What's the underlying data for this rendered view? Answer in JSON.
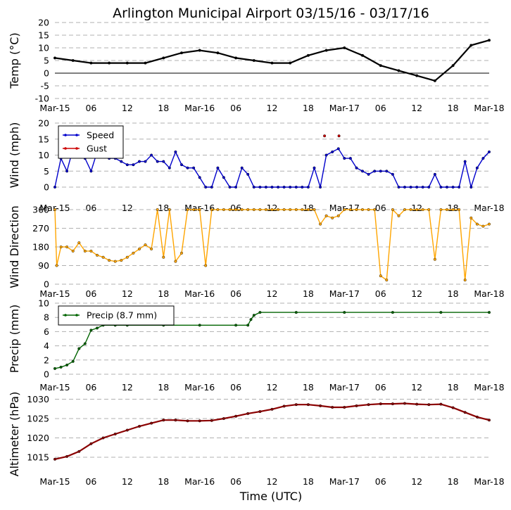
{
  "title": "Arlington Municipal Airport 03/15/16 - 03/17/16",
  "xlabel": "Time (UTC)",
  "x_ticks": [
    "Mar-15",
    "06",
    "12",
    "18",
    "Mar-16",
    "06",
    "12",
    "18",
    "Mar-17",
    "06",
    "12",
    "18",
    "Mar-18"
  ],
  "chart_data": [
    {
      "type": "line",
      "ylabel": "Temp (°C)",
      "ylim": [
        -10,
        20
      ],
      "yticks": [
        -10,
        -5,
        0,
        5,
        10,
        15,
        20
      ],
      "grid": true,
      "zero_line": true,
      "x_hours": [
        0,
        3,
        6,
        9,
        12,
        15,
        18,
        21,
        24,
        27,
        30,
        33,
        36,
        39,
        42,
        45,
        48,
        51,
        54,
        57,
        60,
        63,
        66,
        69,
        72
      ],
      "series": [
        {
          "color": "#000000",
          "values": [
            6,
            5,
            4,
            4,
            4,
            4,
            6,
            8,
            9,
            8,
            6,
            5,
            4,
            4,
            7,
            9,
            10,
            7,
            3,
            1,
            -1,
            -3,
            3,
            11,
            13
          ]
        }
      ]
    },
    {
      "type": "line",
      "ylabel": "Wind (mph)",
      "ylim": [
        0,
        20
      ],
      "yticks": [
        0,
        5,
        10,
        15,
        20
      ],
      "grid": true,
      "legend": "top-left",
      "x_hours": [
        0,
        1,
        2,
        3,
        4,
        5,
        6,
        7,
        8,
        9,
        10,
        11,
        12,
        13,
        14,
        15,
        16,
        17,
        18,
        19,
        20,
        21,
        22,
        23,
        24,
        25,
        26,
        27,
        28,
        29,
        30,
        31,
        32,
        33,
        34,
        35,
        36,
        37,
        38,
        39,
        40,
        41,
        42,
        43,
        44,
        45,
        46,
        47,
        48,
        49,
        50,
        51,
        52,
        53,
        54,
        55,
        56,
        57,
        58,
        59,
        60,
        61,
        62,
        63,
        64,
        65,
        66,
        67,
        68,
        69,
        70,
        71,
        72
      ],
      "series": [
        {
          "name": "Speed",
          "color": "#0000cc",
          "values": [
            0,
            9,
            5,
            12,
            11,
            9,
            5,
            11,
            11,
            9,
            9,
            8,
            7,
            7,
            8,
            8,
            10,
            8,
            8,
            6,
            11,
            7,
            6,
            6,
            3,
            0,
            0,
            6,
            3,
            0,
            0,
            6,
            4,
            0,
            0,
            0,
            0,
            0,
            0,
            0,
            0,
            0,
            0,
            6,
            0,
            10,
            11,
            12,
            9,
            9,
            6,
            5,
            4,
            5,
            5,
            5,
            4,
            0,
            0,
            0,
            0,
            0,
            0,
            4,
            0,
            0,
            0,
            0,
            8,
            0,
            6,
            9,
            11
          ]
        },
        {
          "name": "Gust",
          "color": "#cc0000",
          "points": [
            [
              44.7,
              16
            ],
            [
              47.1,
              16
            ]
          ]
        }
      ]
    },
    {
      "type": "line",
      "ylabel": "Wind Direction",
      "ylim": [
        0,
        360
      ],
      "yticks": [
        0,
        90,
        180,
        270,
        360
      ],
      "grid": true,
      "x_hours": [
        0,
        0.3,
        1,
        2,
        3,
        4,
        5,
        6,
        7,
        8,
        9,
        10,
        11,
        12,
        13,
        14,
        15,
        16,
        17,
        18,
        19,
        20,
        21,
        22,
        23,
        24,
        25,
        26,
        27,
        28,
        29,
        30,
        31,
        32,
        33,
        34,
        35,
        36,
        37,
        38,
        39,
        40,
        41,
        42,
        43,
        44,
        45,
        46,
        47,
        48,
        49,
        50,
        51,
        52,
        53,
        54,
        55,
        56,
        57,
        58,
        59,
        60,
        61,
        62,
        63,
        64,
        65,
        66,
        67,
        68,
        69,
        70,
        71,
        72
      ],
      "series": [
        {
          "color": "#ffa500",
          "values": [
            360,
            90,
            180,
            180,
            160,
            200,
            160,
            160,
            140,
            130,
            115,
            110,
            115,
            130,
            150,
            170,
            190,
            170,
            360,
            130,
            360,
            110,
            150,
            360,
            360,
            360,
            90,
            360,
            360,
            360,
            360,
            360,
            360,
            360,
            360,
            360,
            360,
            360,
            360,
            360,
            360,
            360,
            360,
            360,
            360,
            290,
            330,
            320,
            330,
            360,
            360,
            360,
            360,
            360,
            360,
            40,
            20,
            360,
            330,
            360,
            360,
            360,
            360,
            360,
            120,
            360,
            360,
            360,
            360,
            20,
            320,
            290,
            280,
            290
          ]
        }
      ]
    },
    {
      "type": "line",
      "ylabel": "Precip (mm)",
      "ylim": [
        0,
        10
      ],
      "yticks": [
        0,
        2,
        4,
        6,
        8,
        10
      ],
      "grid": true,
      "legend": "top-left",
      "x_hours": [
        0,
        1,
        2,
        3,
        4,
        5,
        6,
        7,
        8,
        10,
        12,
        18,
        24,
        30,
        32,
        32.5,
        33,
        34,
        40,
        48,
        56,
        64,
        72
      ],
      "series": [
        {
          "name": "Precip (8.7 mm)",
          "color": "#006400",
          "values": [
            0.8,
            1.0,
            1.3,
            1.8,
            3.6,
            4.3,
            6.2,
            6.5,
            6.9,
            6.9,
            6.9,
            6.9,
            6.9,
            6.9,
            6.9,
            7.7,
            8.3,
            8.7,
            8.7,
            8.7,
            8.7,
            8.7,
            8.7
          ]
        }
      ]
    },
    {
      "type": "line",
      "ylabel": "Altimeter (hPa)",
      "ylim": [
        1011,
        1031
      ],
      "yticks": [
        1015,
        1020,
        1025,
        1030
      ],
      "grid": true,
      "x_hours": [
        0,
        2,
        4,
        6,
        8,
        10,
        12,
        14,
        16,
        18,
        20,
        22,
        24,
        26,
        28,
        30,
        32,
        34,
        36,
        38,
        40,
        42,
        44,
        46,
        48,
        50,
        52,
        54,
        56,
        58,
        60,
        62,
        64,
        66,
        68,
        70,
        72
      ],
      "series": [
        {
          "color": "#8b0000",
          "values": [
            1014.5,
            1015.2,
            1016.5,
            1018.5,
            1020,
            1021,
            1022,
            1023,
            1023.8,
            1024.6,
            1024.6,
            1024.4,
            1024.4,
            1024.5,
            1025,
            1025.6,
            1026.3,
            1026.8,
            1027.4,
            1028.2,
            1028.6,
            1028.6,
            1028.3,
            1027.9,
            1027.9,
            1028.3,
            1028.6,
            1028.8,
            1028.8,
            1028.9,
            1028.7,
            1028.6,
            1028.7,
            1027.8,
            1026.6,
            1025.4,
            1024.6
          ]
        }
      ]
    }
  ]
}
